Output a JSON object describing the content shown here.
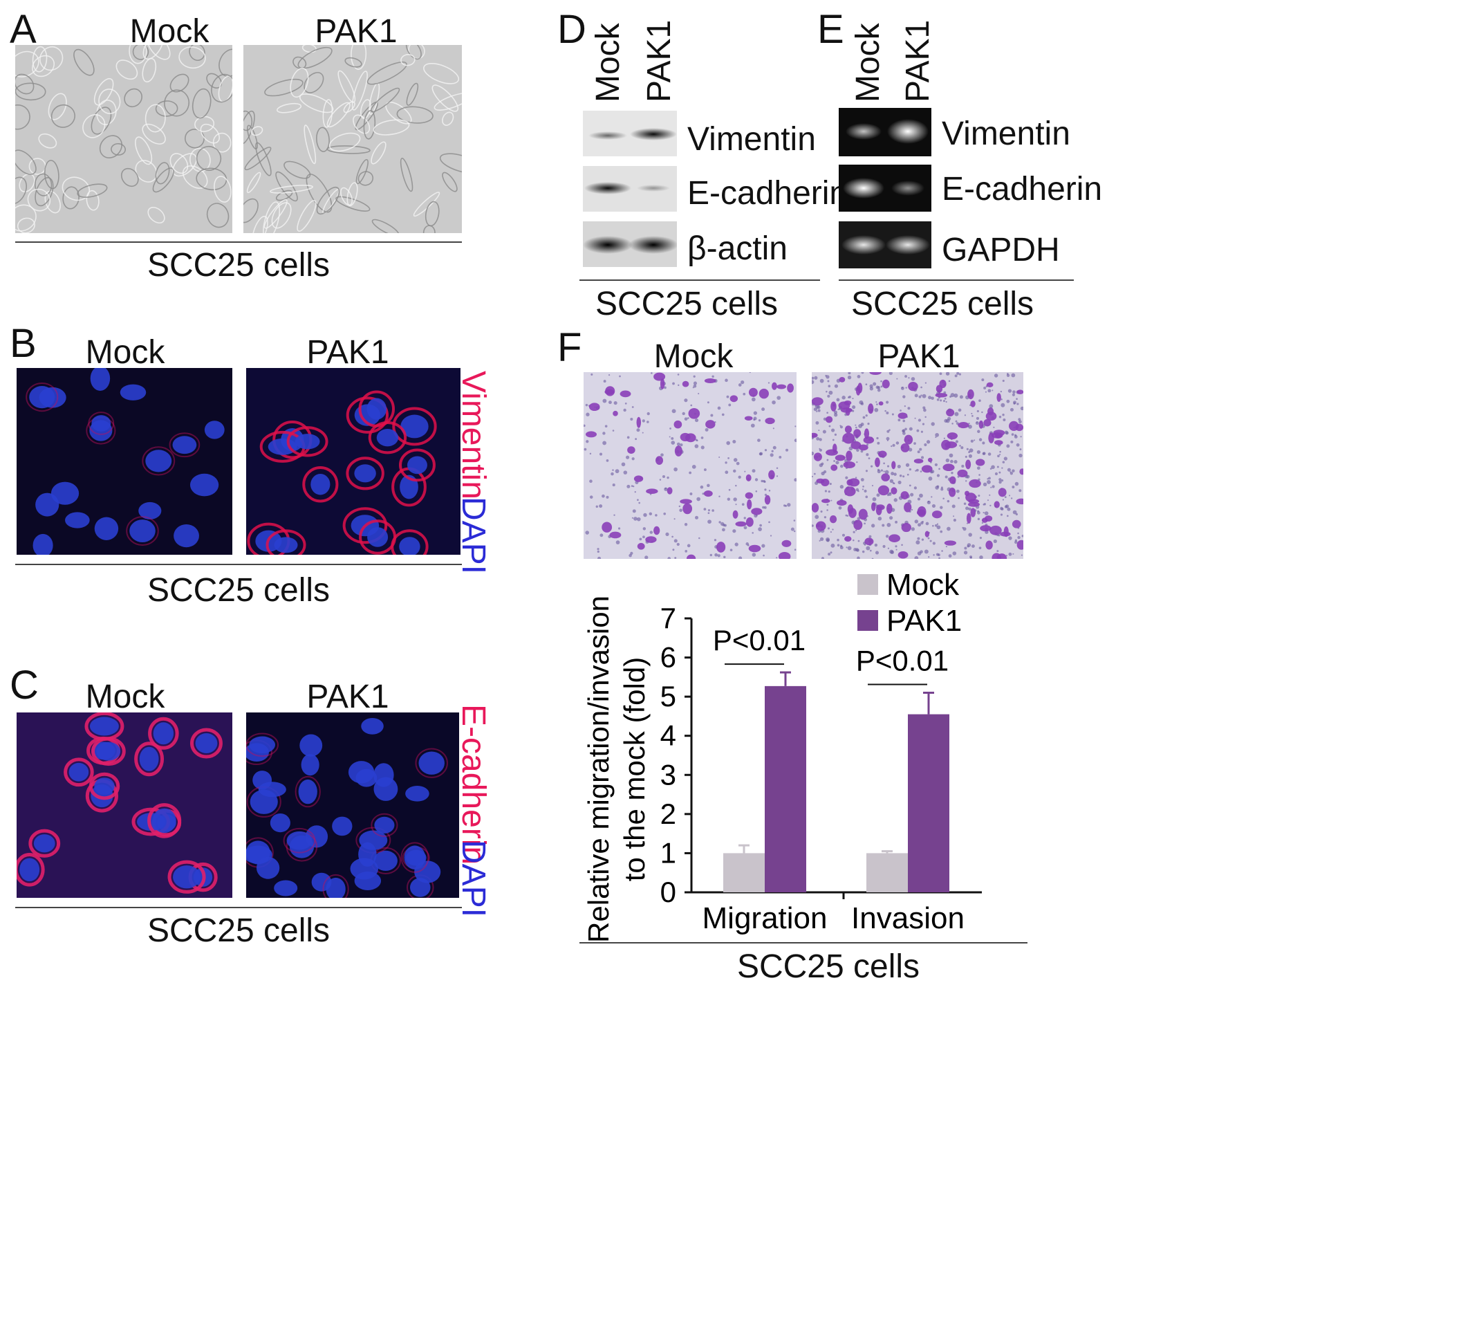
{
  "panels": {
    "A": {
      "letter": "A",
      "left_label": "Mock",
      "right_label": "PAK1",
      "caption": "SCC25 cells"
    },
    "B": {
      "letter": "B",
      "left_label": "Mock",
      "right_label": "PAK1",
      "stain_red": "Vimentin",
      "stain_blue": "DAPI",
      "caption": "SCC25 cells"
    },
    "C": {
      "letter": "C",
      "left_label": "Mock",
      "right_label": "PAK1",
      "stain_red": "E-cadherin",
      "stain_blue": "DAPI",
      "caption": "SCC25 cells"
    },
    "D": {
      "letter": "D",
      "lanes": [
        "Mock",
        "PAK1"
      ],
      "bands": [
        "Vimentin",
        "E-cadherin",
        "β-actin"
      ],
      "caption": "SCC25 cells"
    },
    "E": {
      "letter": "E",
      "lanes": [
        "Mock",
        "PAK1"
      ],
      "bands": [
        "Vimentin",
        "E-cadherin",
        "GAPDH"
      ],
      "caption": "SCC25 cells"
    },
    "F": {
      "letter": "F",
      "left_label": "Mock",
      "right_label": "PAK1",
      "caption": "SCC25 cells"
    }
  },
  "colors": {
    "mock_bar": "#c9c3cb",
    "pak1_bar": "#76428f",
    "vimentin_red": "#e8185a",
    "dapi_blue": "#2b2bd6",
    "crystal_violet": "#8a3fb8"
  },
  "chart_data": {
    "type": "bar",
    "categories": [
      "Migration",
      "Invasion"
    ],
    "series": [
      {
        "name": "Mock",
        "values": [
          1.0,
          1.0
        ],
        "errors": [
          0.2,
          0.05
        ]
      },
      {
        "name": "PAK1",
        "values": [
          5.27,
          4.55
        ],
        "errors": [
          0.35,
          0.55
        ]
      }
    ],
    "ylabel_line1": "Relative migration/invasion",
    "ylabel_line2": "to the mock (fold)",
    "ylim": [
      0,
      7
    ],
    "yticks": [
      "0",
      "1",
      "2",
      "3",
      "4",
      "5",
      "6",
      "7"
    ],
    "significance": [
      "P<0.01",
      "P<0.01"
    ],
    "legend_position": "top-right"
  }
}
